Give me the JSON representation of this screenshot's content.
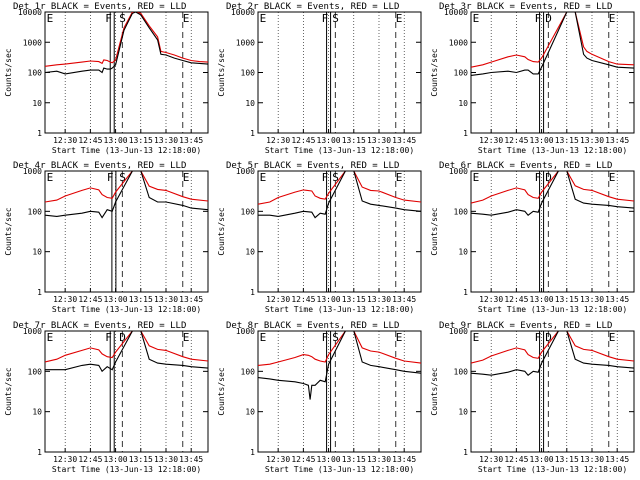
{
  "figure": {
    "start_time_label": "Start Time (13-Jun-13 12:18:00)",
    "ylabel": "Counts/sec",
    "x_ticks": [
      "12:30",
      "12:45",
      "13:00",
      "13:15",
      "13:30",
      "13:45"
    ],
    "y_ticks_row1": [
      "1",
      "10",
      "100",
      "1000",
      "10000"
    ],
    "y_ticks_other": [
      "1",
      "10",
      "100",
      "1000"
    ],
    "colors": {
      "events": "#000000",
      "lld": "#e00000",
      "axes": "#000000"
    }
  },
  "chart_data": [
    {
      "type": "line",
      "title": "Det 1r BLACK = Events, RED = LLD",
      "ylim": [
        1,
        10000
      ],
      "y_scale": "log",
      "xlim": [
        "12:18",
        "13:55"
      ],
      "markers": [
        {
          "label": "E",
          "x": "12:19"
        },
        {
          "label": "F",
          "x": "12:58"
        },
        {
          "label": "S",
          "x": "13:04"
        },
        {
          "label": "E",
          "x": "13:40"
        }
      ],
      "series": [
        {
          "name": "Events",
          "x": [
            "12:18",
            "12:25",
            "12:30",
            "12:40",
            "12:45",
            "12:50",
            "12:52",
            "12:53",
            "12:55",
            "12:57",
            "12:58",
            "13:00",
            "13:05",
            "13:10",
            "13:12",
            "13:15",
            "13:20",
            "13:25",
            "13:27",
            "13:30",
            "13:35",
            "13:40",
            "13:45",
            "13:50",
            "13:55"
          ],
          "y": [
            100,
            110,
            90,
            110,
            120,
            120,
            100,
            140,
            130,
            130,
            140,
            180,
            2500,
            9000,
            10000,
            8000,
            3000,
            1200,
            400,
            380,
            300,
            250,
            210,
            200,
            190
          ]
        },
        {
          "name": "LLD",
          "x": [
            "12:18",
            "12:25",
            "12:30",
            "12:40",
            "12:45",
            "12:50",
            "12:52",
            "12:53",
            "12:55",
            "12:57",
            "12:58",
            "13:00",
            "13:05",
            "13:10",
            "13:12",
            "13:15",
            "13:20",
            "13:25",
            "13:27",
            "13:30",
            "13:35",
            "13:40",
            "13:45",
            "13:50",
            "13:55"
          ],
          "y": [
            160,
            180,
            190,
            220,
            240,
            230,
            200,
            260,
            250,
            220,
            210,
            260,
            3000,
            10000,
            10000,
            9000,
            3500,
            1500,
            500,
            460,
            380,
            300,
            250,
            230,
            220
          ]
        }
      ]
    },
    {
      "type": "line",
      "title": "Det 2r BLACK = Events, RED = LLD",
      "ylim": [
        1,
        10000
      ],
      "y_scale": "log",
      "xlim": [
        "12:18",
        "13:55"
      ],
      "markers": [
        {
          "label": "E",
          "x": "12:19"
        },
        {
          "label": "F",
          "x": "13:00"
        },
        {
          "label": "S",
          "x": "13:04"
        },
        {
          "label": "E",
          "x": "13:40"
        }
      ],
      "series": []
    },
    {
      "type": "line",
      "title": "Det 3r BLACK = Events, RED = LLD",
      "ylim": [
        1,
        10000
      ],
      "y_scale": "log",
      "xlim": [
        "12:18",
        "13:55"
      ],
      "markers": [
        {
          "label": "E",
          "x": "12:19"
        },
        {
          "label": "F",
          "x": "13:00"
        },
        {
          "label": "D",
          "x": "13:04"
        },
        {
          "label": "E",
          "x": "13:40"
        }
      ],
      "series": [
        {
          "name": "Events",
          "x": [
            "12:18",
            "12:25",
            "12:30",
            "12:40",
            "12:45",
            "12:50",
            "12:52",
            "12:55",
            "12:58",
            "13:00",
            "13:15",
            "13:20",
            "13:25",
            "13:27",
            "13:30",
            "13:40",
            "13:45",
            "13:55"
          ],
          "y": [
            80,
            90,
            100,
            110,
            100,
            120,
            120,
            90,
            90,
            150,
            10000,
            10000,
            400,
            300,
            250,
            180,
            150,
            140
          ]
        },
        {
          "name": "LLD",
          "x": [
            "12:18",
            "12:25",
            "12:30",
            "12:40",
            "12:45",
            "12:50",
            "12:52",
            "12:55",
            "12:58",
            "13:00",
            "13:15",
            "13:20",
            "13:25",
            "13:27",
            "13:30",
            "13:40",
            "13:45",
            "13:55"
          ],
          "y": [
            150,
            180,
            220,
            330,
            380,
            330,
            270,
            230,
            220,
            300,
            10000,
            10000,
            700,
            500,
            400,
            230,
            190,
            180
          ]
        }
      ]
    },
    {
      "type": "line",
      "title": "Det 4r BLACK = Events, RED = LLD",
      "ylim": [
        1,
        1000
      ],
      "y_scale": "log",
      "xlim": [
        "12:18",
        "13:55"
      ],
      "markers": [
        {
          "label": "E",
          "x": "12:19"
        },
        {
          "label": "F",
          "x": "12:59"
        },
        {
          "label": "S",
          "x": "13:04"
        },
        {
          "label": "E",
          "x": "13:40"
        }
      ],
      "series": [
        {
          "name": "Events",
          "x": [
            "12:18",
            "12:25",
            "12:30",
            "12:40",
            "12:45",
            "12:50",
            "12:52",
            "12:55",
            "12:58",
            "13:00",
            "13:10",
            "13:15",
            "13:20",
            "13:25",
            "13:30",
            "13:40",
            "13:45",
            "13:55"
          ],
          "y": [
            80,
            75,
            80,
            90,
            100,
            95,
            70,
            110,
            100,
            170,
            1000,
            1000,
            220,
            170,
            170,
            140,
            120,
            110
          ]
        },
        {
          "name": "LLD",
          "x": [
            "12:18",
            "12:25",
            "12:30",
            "12:40",
            "12:45",
            "12:50",
            "12:52",
            "12:55",
            "12:58",
            "13:00",
            "13:10",
            "13:15",
            "13:20",
            "13:25",
            "13:30",
            "13:40",
            "13:45",
            "13:55"
          ],
          "y": [
            170,
            190,
            240,
            330,
            380,
            340,
            260,
            220,
            210,
            300,
            1000,
            1000,
            420,
            350,
            330,
            230,
            200,
            180
          ]
        }
      ]
    },
    {
      "type": "line",
      "title": "Det 5r BLACK = Events, RED = LLD",
      "ylim": [
        1,
        1000
      ],
      "y_scale": "log",
      "xlim": [
        "12:18",
        "13:55"
      ],
      "markers": [
        {
          "label": "E",
          "x": "12:19"
        },
        {
          "label": "F",
          "x": "13:00"
        },
        {
          "label": "S",
          "x": "13:04"
        },
        {
          "label": "E",
          "x": "13:40"
        }
      ],
      "series": [
        {
          "name": "Events",
          "x": [
            "12:18",
            "12:25",
            "12:30",
            "12:40",
            "12:45",
            "12:50",
            "12:52",
            "12:55",
            "12:58",
            "13:00",
            "13:10",
            "13:15",
            "13:20",
            "13:25",
            "13:30",
            "13:40",
            "13:45",
            "13:55"
          ],
          "y": [
            80,
            80,
            75,
            90,
            100,
            95,
            70,
            90,
            85,
            160,
            1000,
            1000,
            180,
            150,
            140,
            120,
            110,
            100
          ]
        },
        {
          "name": "LLD",
          "x": [
            "12:18",
            "12:25",
            "12:30",
            "12:40",
            "12:45",
            "12:50",
            "12:52",
            "12:55",
            "12:58",
            "13:00",
            "13:10",
            "13:15",
            "13:20",
            "13:25",
            "13:30",
            "13:40",
            "13:45",
            "13:55"
          ],
          "y": [
            150,
            170,
            220,
            300,
            340,
            320,
            240,
            210,
            200,
            280,
            1000,
            1000,
            400,
            330,
            320,
            220,
            190,
            170
          ]
        }
      ]
    },
    {
      "type": "line",
      "title": "Det 6r BLACK = Events, RED = LLD",
      "ylim": [
        1,
        1000
      ],
      "y_scale": "log",
      "xlim": [
        "12:18",
        "13:55"
      ],
      "markers": [
        {
          "label": "E",
          "x": "12:19"
        },
        {
          "label": "F",
          "x": "13:00"
        },
        {
          "label": "D",
          "x": "13:04"
        },
        {
          "label": "E",
          "x": "13:40"
        }
      ],
      "series": [
        {
          "name": "Events",
          "x": [
            "12:18",
            "12:25",
            "12:30",
            "12:40",
            "12:45",
            "12:50",
            "12:52",
            "12:55",
            "12:58",
            "13:00",
            "13:10",
            "13:15",
            "13:20",
            "13:25",
            "13:30",
            "13:40",
            "13:45",
            "13:55"
          ],
          "y": [
            90,
            85,
            80,
            95,
            110,
            100,
            80,
            100,
            95,
            160,
            1000,
            1000,
            200,
            160,
            150,
            140,
            130,
            120
          ]
        },
        {
          "name": "LLD",
          "x": [
            "12:18",
            "12:25",
            "12:30",
            "12:40",
            "12:45",
            "12:50",
            "12:52",
            "12:55",
            "12:58",
            "13:00",
            "13:10",
            "13:15",
            "13:20",
            "13:25",
            "13:30",
            "13:40",
            "13:45",
            "13:55"
          ],
          "y": [
            160,
            190,
            240,
            330,
            380,
            340,
            260,
            220,
            210,
            300,
            1000,
            1000,
            430,
            350,
            330,
            230,
            200,
            180
          ]
        }
      ]
    },
    {
      "type": "line",
      "title": "Det 7r BLACK = Events, RED = LLD",
      "ylim": [
        1,
        1000
      ],
      "y_scale": "log",
      "xlim": [
        "12:18",
        "13:55"
      ],
      "markers": [
        {
          "label": "E",
          "x": "12:19"
        },
        {
          "label": "F",
          "x": "12:58"
        },
        {
          "label": "D",
          "x": "13:04"
        },
        {
          "label": "E",
          "x": "13:40"
        }
      ],
      "series": [
        {
          "name": "Events",
          "x": [
            "12:18",
            "12:25",
            "12:30",
            "12:40",
            "12:45",
            "12:50",
            "12:52",
            "12:55",
            "12:58",
            "13:00",
            "13:10",
            "13:15",
            "13:20",
            "13:25",
            "13:30",
            "13:40",
            "13:45",
            "13:55"
          ],
          "y": [
            110,
            110,
            110,
            140,
            150,
            140,
            100,
            130,
            110,
            170,
            1000,
            1000,
            200,
            160,
            150,
            140,
            130,
            120
          ]
        },
        {
          "name": "LLD",
          "x": [
            "12:18",
            "12:25",
            "12:30",
            "12:40",
            "12:45",
            "12:50",
            "12:52",
            "12:55",
            "12:58",
            "13:00",
            "13:10",
            "13:15",
            "13:20",
            "13:25",
            "13:30",
            "13:40",
            "13:45",
            "13:55"
          ],
          "y": [
            170,
            200,
            250,
            330,
            380,
            340,
            270,
            230,
            220,
            300,
            1000,
            1000,
            430,
            350,
            330,
            230,
            200,
            180
          ]
        }
      ]
    },
    {
      "type": "line",
      "title": "Det 8r BLACK = Events, RED = LLD",
      "ylim": [
        1,
        1000
      ],
      "y_scale": "log",
      "xlim": [
        "12:18",
        "13:55"
      ],
      "markers": [
        {
          "label": "E",
          "x": "12:19"
        },
        {
          "label": "F",
          "x": "13:00"
        },
        {
          "label": "S",
          "x": "13:04"
        },
        {
          "label": "E",
          "x": "13:40"
        }
      ],
      "series": [
        {
          "name": "Events",
          "x": [
            "12:18",
            "12:25",
            "12:30",
            "12:40",
            "12:45",
            "12:48",
            "12:49",
            "12:50",
            "12:52",
            "12:55",
            "12:58",
            "13:00",
            "13:10",
            "13:15",
            "13:20",
            "13:25",
            "13:30",
            "13:40",
            "13:45",
            "13:55"
          ],
          "y": [
            70,
            65,
            60,
            55,
            50,
            45,
            20,
            45,
            45,
            60,
            55,
            150,
            1000,
            1000,
            170,
            140,
            130,
            110,
            100,
            90
          ]
        },
        {
          "name": "LLD",
          "x": [
            "12:18",
            "12:25",
            "12:30",
            "12:40",
            "12:45",
            "12:48",
            "12:49",
            "12:50",
            "12:52",
            "12:55",
            "12:58",
            "13:00",
            "13:10",
            "13:15",
            "13:20",
            "13:25",
            "13:30",
            "13:40",
            "13:45",
            "13:55"
          ],
          "y": [
            140,
            150,
            170,
            220,
            260,
            250,
            240,
            230,
            200,
            180,
            170,
            260,
            1000,
            1000,
            380,
            320,
            300,
            210,
            180,
            160
          ]
        }
      ]
    },
    {
      "type": "line",
      "title": "Det 9r BLACK = Events, RED = LLD",
      "ylim": [
        1,
        1000
      ],
      "y_scale": "log",
      "xlim": [
        "12:18",
        "13:55"
      ],
      "markers": [
        {
          "label": "E",
          "x": "12:19"
        },
        {
          "label": "F",
          "x": "13:00"
        },
        {
          "label": "D",
          "x": "13:04"
        },
        {
          "label": "E",
          "x": "13:40"
        }
      ],
      "series": [
        {
          "name": "Events",
          "x": [
            "12:18",
            "12:25",
            "12:30",
            "12:40",
            "12:45",
            "12:50",
            "12:52",
            "12:55",
            "12:58",
            "13:00",
            "13:10",
            "13:15",
            "13:20",
            "13:25",
            "13:30",
            "13:40",
            "13:45",
            "13:55"
          ],
          "y": [
            90,
            85,
            80,
            95,
            110,
            100,
            80,
            100,
            95,
            160,
            1000,
            1000,
            200,
            160,
            150,
            140,
            130,
            120
          ]
        },
        {
          "name": "LLD",
          "x": [
            "12:18",
            "12:25",
            "12:30",
            "12:40",
            "12:45",
            "12:50",
            "12:52",
            "12:55",
            "12:58",
            "13:00",
            "13:10",
            "13:15",
            "13:20",
            "13:25",
            "13:30",
            "13:40",
            "13:45",
            "13:55"
          ],
          "y": [
            160,
            190,
            240,
            330,
            380,
            340,
            260,
            220,
            210,
            300,
            1000,
            1000,
            430,
            350,
            330,
            230,
            200,
            180
          ]
        }
      ]
    }
  ]
}
